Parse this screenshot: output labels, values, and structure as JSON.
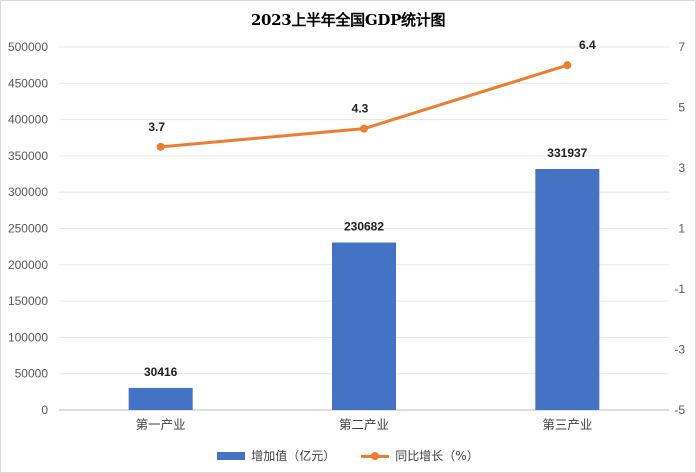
{
  "colors": {
    "bar": "#4472c4",
    "line": "#ed7d31",
    "grid": "#e6e6e6"
  },
  "chart_data": {
    "type": "bar",
    "title": "2023上半年全国GDP统计图",
    "categories": [
      "第一产业",
      "第二产业",
      "第三产业"
    ],
    "series": [
      {
        "name": "增加值（亿元）",
        "type": "bar",
        "axis": "left",
        "values": [
          30416,
          230682,
          331937
        ],
        "labels": [
          "30416",
          "230682",
          "331937"
        ]
      },
      {
        "name": "同比增长（%）",
        "type": "line",
        "axis": "right",
        "values": [
          3.7,
          4.3,
          6.4
        ],
        "labels": [
          "3.7",
          "4.3",
          "6.4"
        ]
      }
    ],
    "y_left": {
      "min": 0,
      "max": 500000,
      "ticks": [
        "0",
        "50000",
        "100000",
        "150000",
        "200000",
        "250000",
        "300000",
        "350000",
        "400000",
        "450000",
        "500000"
      ]
    },
    "y_right": {
      "min": -5,
      "max": 7,
      "ticks": [
        "-5",
        "-3",
        "-1",
        "1",
        "3",
        "5",
        "7"
      ]
    },
    "grid": true,
    "legend": "bottom"
  }
}
